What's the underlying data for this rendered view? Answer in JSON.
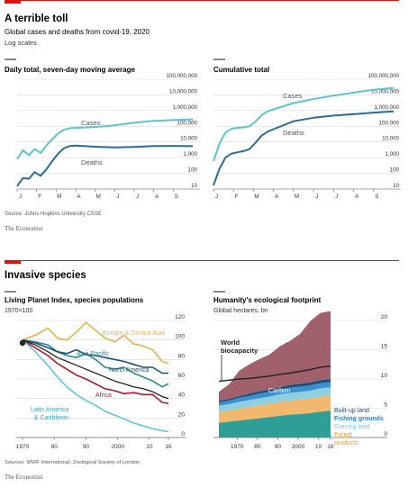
{
  "colors": {
    "accent_red": "#e3120b",
    "cases_line": "#5cc5cc",
    "deaths_line": "#2b6b94",
    "grid": "#d6dbde",
    "europe": "#e7b04b",
    "asia": "#2c8c8c",
    "na": "#1f4e79",
    "africa": "#a81d2a",
    "latam": "#5fc8d6",
    "global": "#222222",
    "carbon": "#a0606c",
    "builtup": "#1f4e79",
    "fishing": "#3a8fd1",
    "grazing": "#8fd0e0",
    "forest": "#f2b96e",
    "cropland": "#2f9e96"
  },
  "panel1": {
    "title": "A terrible toll",
    "subtitle": "Global cases and deaths from covid-19, 2020",
    "note": "Log scales",
    "source": "Source: Johns Hopkins University CSSE",
    "brand": "The Economist"
  },
  "panel2": {
    "title": "Invasive species",
    "source": "Sources: WWF International; Zoological Society of London",
    "brand": "The Economist"
  },
  "chart_data": [
    {
      "type": "line",
      "title": "Daily total, seven-day moving average",
      "yscale": "log",
      "ylim": [
        10,
        100000000
      ],
      "y_ticks": [
        "100,000,000",
        "10,000,000",
        "1,000,000",
        "100,000",
        "10,000",
        "1,000",
        "100",
        "10"
      ],
      "x_ticks": [
        "J",
        "F",
        "M",
        "A",
        "M",
        "J",
        "J",
        "A",
        "S"
      ],
      "series": [
        {
          "name": "Cases",
          "x": [
            0,
            0.3,
            0.6,
            0.9,
            1.2,
            1.5,
            1.8,
            2.1,
            2.4,
            2.7,
            3,
            4,
            5,
            6,
            7,
            8,
            9
          ],
          "values": [
            800,
            3000,
            1500,
            3500,
            2000,
            6000,
            15000,
            35000,
            60000,
            75000,
            80000,
            90000,
            115000,
            170000,
            220000,
            250000,
            280000
          ]
        },
        {
          "name": "Deaths",
          "x": [
            0,
            0.3,
            0.6,
            0.9,
            1.2,
            1.5,
            1.8,
            2.1,
            2.4,
            2.7,
            3,
            4,
            5,
            6,
            7,
            8,
            9
          ],
          "values": [
            15,
            50,
            45,
            120,
            70,
            180,
            600,
            1800,
            4000,
            5500,
            5800,
            5000,
            4500,
            4800,
            5500,
            5600,
            5400
          ]
        }
      ]
    },
    {
      "type": "line",
      "title": "Cumulative total",
      "yscale": "log",
      "ylim": [
        10,
        100000000
      ],
      "y_ticks": [
        "100,000,000",
        "10,000,000",
        "1,000,000",
        "100,000",
        "10,000",
        "1,000",
        "100",
        "10"
      ],
      "x_ticks": [
        "J",
        "F",
        "M",
        "A",
        "M",
        "J",
        "J",
        "A",
        "S"
      ],
      "series": [
        {
          "name": "Cases",
          "x": [
            0,
            0.3,
            0.6,
            0.9,
            1.2,
            1.5,
            1.8,
            2.1,
            2.4,
            2.7,
            3,
            4,
            5,
            6,
            7,
            8,
            9
          ],
          "values": [
            600,
            8000,
            40000,
            70000,
            80000,
            85000,
            100000,
            200000,
            500000,
            900000,
            1200000,
            3000000,
            5500000,
            9000000,
            14000000,
            21000000,
            28000000
          ]
        },
        {
          "name": "Deaths",
          "x": [
            0,
            0.3,
            0.6,
            0.9,
            1.2,
            1.5,
            1.8,
            2.1,
            2.4,
            2.7,
            3,
            4,
            5,
            6,
            7,
            8,
            9
          ],
          "values": [
            17,
            200,
            1000,
            1800,
            2200,
            2600,
            3500,
            9000,
            25000,
            45000,
            65000,
            210000,
            350000,
            480000,
            590000,
            740000,
            900000
          ]
        }
      ]
    },
    {
      "type": "line",
      "title": "Living Planet Index, species populations",
      "subtitle": "1970=100",
      "ylim": [
        0,
        120
      ],
      "y_ticks": [
        "120",
        "100",
        "80",
        "60",
        "40",
        "20",
        "0"
      ],
      "x_ticks": [
        "1970",
        "80",
        "90",
        "2000",
        "10",
        "16"
      ],
      "xlim": [
        1970,
        2016
      ],
      "series": [
        {
          "name": "Europe & Central Asia",
          "x": [
            1970,
            1974,
            1978,
            1981,
            1984,
            1987,
            1990,
            1993,
            1996,
            1999,
            2002,
            2005,
            2008,
            2011,
            2014,
            2016
          ],
          "values": [
            100,
            105,
            112,
            102,
            100,
            108,
            118,
            110,
            102,
            98,
            105,
            96,
            94,
            90,
            78,
            76
          ]
        },
        {
          "name": "Asia Pacific",
          "x": [
            1970,
            1974,
            1978,
            1981,
            1984,
            1987,
            1990,
            1993,
            1996,
            1999,
            2002,
            2005,
            2008,
            2011,
            2014,
            2016
          ],
          "values": [
            100,
            98,
            95,
            88,
            84,
            82,
            86,
            80,
            72,
            70,
            72,
            66,
            62,
            58,
            52,
            55
          ]
        },
        {
          "name": "North America",
          "x": [
            1970,
            1974,
            1978,
            1981,
            1984,
            1987,
            1990,
            1993,
            1996,
            1999,
            2002,
            2005,
            2008,
            2011,
            2014,
            2016
          ],
          "values": [
            100,
            97,
            92,
            88,
            86,
            90,
            85,
            84,
            82,
            80,
            78,
            75,
            72,
            72,
            66,
            66
          ]
        },
        {
          "name": "Africa",
          "x": [
            1970,
            1974,
            1978,
            1981,
            1984,
            1987,
            1990,
            1993,
            1996,
            1999,
            2002,
            2005,
            2008,
            2011,
            2014,
            2016
          ],
          "values": [
            100,
            92,
            84,
            76,
            70,
            64,
            60,
            55,
            50,
            48,
            45,
            46,
            44,
            44,
            36,
            35
          ]
        },
        {
          "name": "Latin America & Caribbean",
          "x": [
            1970,
            1974,
            1978,
            1981,
            1984,
            1987,
            1990,
            1993,
            1996,
            1999,
            2002,
            2005,
            2008,
            2011,
            2014,
            2016
          ],
          "values": [
            100,
            88,
            74,
            62,
            52,
            44,
            38,
            33,
            27,
            23,
            19,
            15,
            12,
            9,
            7,
            6
          ]
        },
        {
          "name": "",
          "x": [
            1970,
            1974,
            1978,
            1981,
            1984,
            1987,
            1990,
            1993,
            1996,
            1999,
            2002,
            2005,
            2008,
            2011,
            2014,
            2016
          ],
          "values": [
            100,
            95,
            88,
            82,
            78,
            74,
            70,
            66,
            62,
            58,
            55,
            52,
            50,
            47,
            42,
            40
          ]
        }
      ]
    },
    {
      "type": "area",
      "title": "Humanity's ecological footprint",
      "subtitle": "Global hectares, bn",
      "ylim": [
        0,
        20
      ],
      "y_ticks": [
        "20",
        "15",
        "10",
        "5",
        "0"
      ],
      "x_ticks": [
        "1970",
        "80",
        "90",
        "2000",
        "10",
        "16"
      ],
      "xlim": [
        1961,
        2016
      ],
      "x": [
        1961,
        1966,
        1971,
        1976,
        1981,
        1986,
        1991,
        1996,
        2001,
        2006,
        2011,
        2016
      ],
      "series": [
        {
          "name": "Cropland",
          "values": [
            2.5,
            2.7,
            2.9,
            3.1,
            3.3,
            3.5,
            3.7,
            3.9,
            4.0,
            4.2,
            4.4,
            4.6
          ]
        },
        {
          "name": "Forest products",
          "values": [
            1.8,
            1.9,
            2.0,
            2.1,
            2.2,
            2.3,
            2.4,
            2.4,
            2.5,
            2.5,
            2.6,
            2.6
          ]
        },
        {
          "name": "Grazing land",
          "values": [
            1.1,
            1.1,
            1.2,
            1.2,
            1.2,
            1.2,
            1.3,
            1.3,
            1.3,
            1.3,
            1.4,
            1.4
          ]
        },
        {
          "name": "Fishing grounds",
          "values": [
            0.6,
            0.6,
            0.7,
            0.7,
            0.8,
            0.8,
            0.8,
            0.9,
            0.9,
            0.9,
            0.9,
            0.9
          ]
        },
        {
          "name": "Built-up land",
          "values": [
            0.3,
            0.3,
            0.3,
            0.4,
            0.4,
            0.4,
            0.4,
            0.5,
            0.5,
            0.5,
            0.5,
            0.5
          ]
        },
        {
          "name": "Carbon",
          "values": [
            1.5,
            2.5,
            4.3,
            5.0,
            5.5,
            6.0,
            7.0,
            7.5,
            8.5,
            10.5,
            11.5,
            11.6
          ]
        }
      ],
      "biocapacity": {
        "name": "World biocapacity",
        "values": [
          9.6,
          9.8,
          10.0,
          10.1,
          10.3,
          10.5,
          10.8,
          11.0,
          11.3,
          11.6,
          12.0,
          12.2
        ]
      }
    }
  ]
}
